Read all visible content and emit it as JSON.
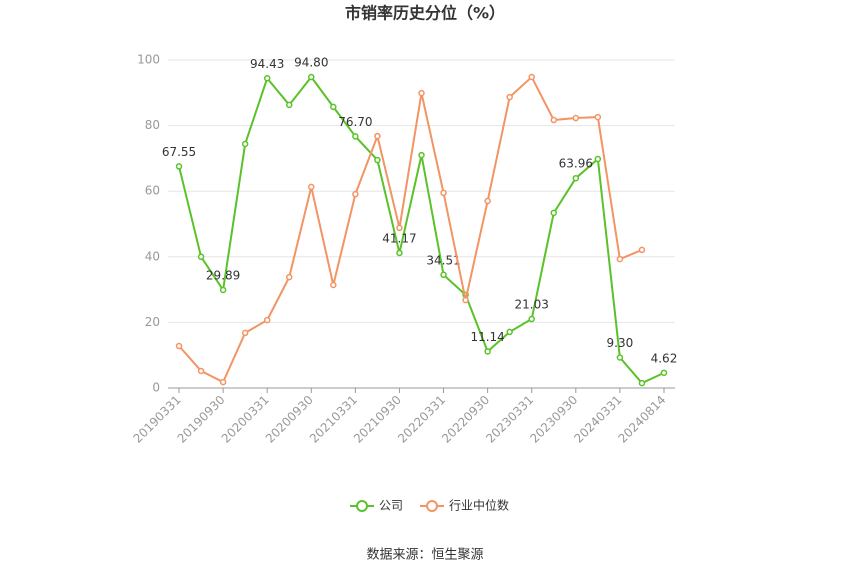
{
  "chart_data": {
    "type": "line",
    "title": "市销率历史分位（%）",
    "source": "数据来源：恒生聚源",
    "categories": [
      "20190331",
      null,
      "20190930",
      null,
      "20200331",
      null,
      "20200930",
      null,
      "20210331",
      null,
      "20210930",
      null,
      "20220331",
      null,
      "20220930",
      null,
      "20230331",
      null,
      "20230930",
      null,
      "20240331",
      null,
      "20240814"
    ],
    "series": [
      {
        "name": "公司",
        "color": "#5ac229",
        "values": [
          67.55,
          40.0,
          29.89,
          74.4,
          94.43,
          86.3,
          94.8,
          85.7,
          76.7,
          69.5,
          41.17,
          71.0,
          34.51,
          28.4,
          11.14,
          17.1,
          21.03,
          53.4,
          63.96,
          69.8,
          9.3,
          1.5,
          4.62
        ],
        "value_labels": [
          "67.55",
          null,
          "29.89",
          null,
          "94.43",
          null,
          "94.80",
          null,
          "76.70",
          null,
          "41.17",
          null,
          "34.51",
          null,
          "11.14",
          null,
          "21.03",
          null,
          "63.96",
          null,
          "9.30",
          null,
          "4.62"
        ]
      },
      {
        "name": "行业中位数",
        "color": "#f29463",
        "values": [
          12.8,
          5.2,
          1.8,
          16.8,
          20.7,
          33.8,
          61.3,
          31.4,
          59.1,
          76.8,
          48.8,
          89.9,
          59.5,
          26.8,
          57.0,
          88.7,
          94.8,
          81.7,
          82.3,
          82.6,
          39.3,
          42.1,
          null
        ]
      }
    ],
    "ylim": [
      0,
      100
    ],
    "yticks": [
      0,
      20,
      40,
      60,
      80,
      100
    ],
    "grid": true
  }
}
